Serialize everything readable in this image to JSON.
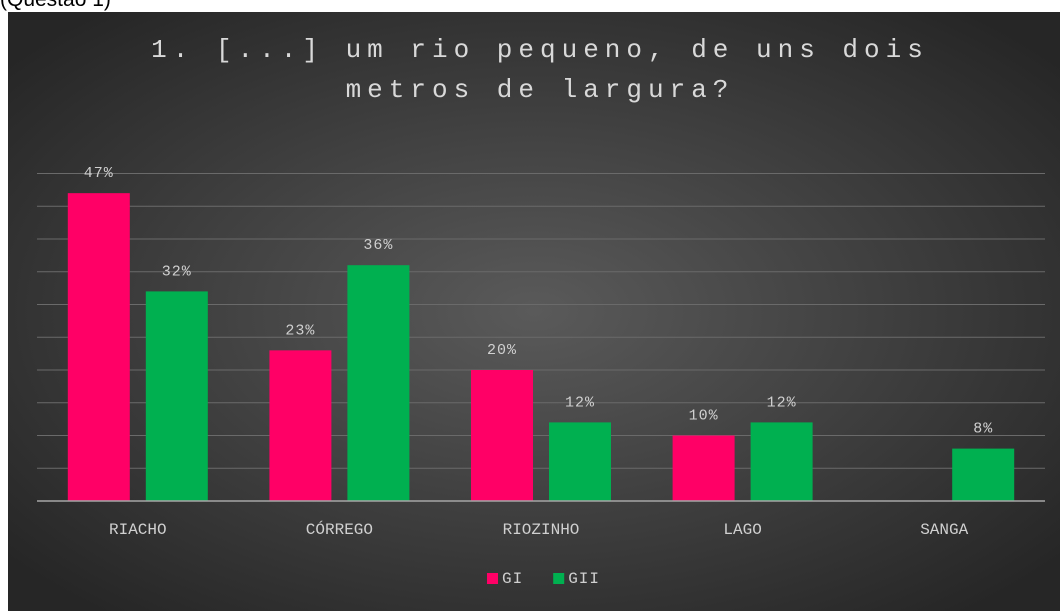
{
  "header": "(Questão 1)",
  "chart_data": {
    "type": "bar",
    "title": "1. [...] um rio pequeno, de uns dois metros de largura?",
    "categories": [
      "RIACHO",
      "CÓRREGO",
      "RIOZINHO",
      "LAGO",
      "SANGA"
    ],
    "series": [
      {
        "name": "GI",
        "color": "#ff0066",
        "values": [
          47,
          23,
          20,
          10,
          null
        ],
        "value_labels": [
          "47%",
          "23%",
          "20%",
          "10%",
          null
        ]
      },
      {
        "name": "GII",
        "color": "#00b050",
        "values": [
          32,
          36,
          12,
          12,
          8
        ],
        "value_labels": [
          "32%",
          "36%",
          "12%",
          "12%",
          "8%"
        ]
      }
    ],
    "ylim": [
      0,
      50
    ],
    "yticks": [
      0,
      5,
      10,
      15,
      20,
      25,
      30,
      35,
      40,
      45,
      50
    ],
    "grid": true,
    "legend": "bottom"
  }
}
